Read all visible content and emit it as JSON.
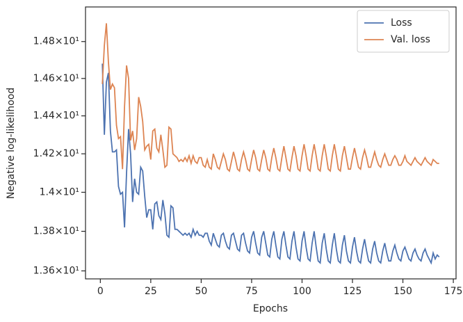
{
  "chart_data": {
    "type": "line",
    "xlabel": "Epochs",
    "ylabel": "Negative log-likelihood",
    "x": [
      1,
      2,
      3,
      4,
      5,
      6,
      7,
      8,
      9,
      10,
      11,
      12,
      13,
      14,
      15,
      16,
      17,
      18,
      19,
      20,
      21,
      22,
      23,
      24,
      25,
      26,
      27,
      28,
      29,
      30,
      31,
      32,
      33,
      34,
      35,
      36,
      37,
      38,
      39,
      40,
      41,
      42,
      43,
      44,
      45,
      46,
      47,
      48,
      49,
      50,
      51,
      52,
      53,
      54,
      55,
      56,
      57,
      58,
      59,
      60,
      61,
      62,
      63,
      64,
      65,
      66,
      67,
      68,
      69,
      70,
      71,
      72,
      73,
      74,
      75,
      76,
      77,
      78,
      79,
      80,
      81,
      82,
      83,
      84,
      85,
      86,
      87,
      88,
      89,
      90,
      91,
      92,
      93,
      94,
      95,
      96,
      97,
      98,
      99,
      100,
      101,
      102,
      103,
      104,
      105,
      106,
      107,
      108,
      109,
      110,
      111,
      112,
      113,
      114,
      115,
      116,
      117,
      118,
      119,
      120,
      121,
      122,
      123,
      124,
      125,
      126,
      127,
      128,
      129,
      130,
      131,
      132,
      133,
      134,
      135,
      136,
      137,
      138,
      139,
      140,
      141,
      142,
      143,
      144,
      145,
      146,
      147,
      148,
      149,
      150,
      151,
      152,
      153,
      154,
      155,
      156,
      157,
      158,
      159,
      160,
      161,
      162,
      163,
      164,
      165,
      166,
      167,
      168
    ],
    "series": [
      {
        "name": "Loss",
        "color": "#4c72b0",
        "values": [
          14.68,
          14.3,
          14.58,
          14.63,
          14.32,
          14.21,
          14.21,
          14.22,
          14.03,
          13.99,
          14.0,
          13.82,
          14.1,
          14.33,
          14.2,
          13.95,
          14.07,
          14.0,
          13.99,
          14.13,
          14.11,
          13.98,
          13.87,
          13.91,
          13.91,
          13.81,
          13.94,
          13.95,
          13.88,
          13.86,
          13.96,
          13.89,
          13.78,
          13.77,
          13.93,
          13.92,
          13.81,
          13.81,
          13.8,
          13.79,
          13.78,
          13.79,
          13.78,
          13.79,
          13.77,
          13.81,
          13.78,
          13.8,
          13.78,
          13.78,
          13.77,
          13.79,
          13.79,
          13.75,
          13.73,
          13.79,
          13.76,
          13.73,
          13.72,
          13.78,
          13.79,
          13.75,
          13.72,
          13.71,
          13.78,
          13.79,
          13.75,
          13.71,
          13.7,
          13.78,
          13.79,
          13.74,
          13.7,
          13.69,
          13.77,
          13.8,
          13.74,
          13.69,
          13.68,
          13.77,
          13.8,
          13.74,
          13.68,
          13.67,
          13.76,
          13.8,
          13.73,
          13.67,
          13.66,
          13.76,
          13.8,
          13.73,
          13.67,
          13.66,
          13.75,
          13.8,
          13.72,
          13.66,
          13.65,
          13.75,
          13.8,
          13.72,
          13.66,
          13.65,
          13.74,
          13.8,
          13.72,
          13.65,
          13.64,
          13.74,
          13.79,
          13.71,
          13.65,
          13.64,
          13.73,
          13.79,
          13.71,
          13.65,
          13.64,
          13.73,
          13.78,
          13.7,
          13.65,
          13.64,
          13.72,
          13.77,
          13.7,
          13.65,
          13.64,
          13.71,
          13.76,
          13.7,
          13.65,
          13.64,
          13.71,
          13.75,
          13.69,
          13.65,
          13.64,
          13.7,
          13.74,
          13.69,
          13.65,
          13.65,
          13.7,
          13.73,
          13.69,
          13.66,
          13.65,
          13.7,
          13.72,
          13.69,
          13.66,
          13.65,
          13.69,
          13.71,
          13.68,
          13.66,
          13.65,
          13.69,
          13.71,
          13.68,
          13.66,
          13.64,
          13.69,
          13.66,
          13.68,
          13.67
        ]
      },
      {
        "name": "Val. loss",
        "color": "#dd8452",
        "values": [
          14.57,
          14.78,
          14.9,
          14.69,
          14.54,
          14.57,
          14.55,
          14.35,
          14.28,
          14.29,
          14.12,
          14.45,
          14.67,
          14.6,
          14.27,
          14.32,
          14.22,
          14.28,
          14.5,
          14.45,
          14.37,
          14.22,
          14.24,
          14.25,
          14.17,
          14.32,
          14.33,
          14.23,
          14.21,
          14.3,
          14.22,
          14.13,
          14.14,
          14.34,
          14.33,
          14.2,
          14.19,
          14.18,
          14.16,
          14.17,
          14.16,
          14.18,
          14.16,
          14.19,
          14.15,
          14.19,
          14.16,
          14.15,
          14.18,
          14.18,
          14.14,
          14.13,
          14.17,
          14.13,
          14.12,
          14.2,
          14.17,
          14.13,
          14.12,
          14.16,
          14.2,
          14.17,
          14.12,
          14.11,
          14.16,
          14.21,
          14.17,
          14.12,
          14.11,
          14.17,
          14.21,
          14.17,
          14.12,
          14.11,
          14.17,
          14.22,
          14.18,
          14.12,
          14.11,
          14.17,
          14.22,
          14.18,
          14.12,
          14.11,
          14.18,
          14.23,
          14.18,
          14.12,
          14.11,
          14.18,
          14.24,
          14.18,
          14.12,
          14.11,
          14.18,
          14.24,
          14.19,
          14.12,
          14.11,
          14.19,
          14.25,
          14.19,
          14.12,
          14.11,
          14.19,
          14.25,
          14.19,
          14.12,
          14.11,
          14.19,
          14.25,
          14.19,
          14.12,
          14.11,
          14.19,
          14.25,
          14.19,
          14.12,
          14.11,
          14.19,
          14.24,
          14.18,
          14.12,
          14.12,
          14.18,
          14.23,
          14.18,
          14.13,
          14.12,
          14.18,
          14.22,
          14.18,
          14.13,
          14.13,
          14.17,
          14.21,
          14.17,
          14.14,
          14.13,
          14.17,
          14.2,
          14.17,
          14.14,
          14.14,
          14.17,
          14.19,
          14.17,
          14.14,
          14.14,
          14.16,
          14.19,
          14.16,
          14.15,
          14.14,
          14.16,
          14.18,
          14.16,
          14.15,
          14.14,
          14.16,
          14.18,
          14.16,
          14.15,
          14.14,
          14.17,
          14.16,
          14.15,
          14.15
        ]
      }
    ],
    "xlim": [
      -7.35,
      176.35
    ],
    "xticks": [
      0,
      25,
      50,
      75,
      100,
      125,
      150,
      175
    ],
    "ylim": [
      13.56,
      14.99
    ],
    "yscale": "log",
    "yticks": [
      {
        "value": 13.6,
        "label": "1.36×10¹"
      },
      {
        "value": 13.8,
        "label": "1.38×10¹"
      },
      {
        "value": 14.0,
        "label": "1.4×10¹"
      },
      {
        "value": 14.2,
        "label": "1.42×10¹"
      },
      {
        "value": 14.4,
        "label": "1.44×10¹"
      },
      {
        "value": 14.6,
        "label": "1.46×10¹"
      },
      {
        "value": 14.8,
        "label": "1.48×10¹"
      }
    ],
    "legend": "upper right"
  }
}
